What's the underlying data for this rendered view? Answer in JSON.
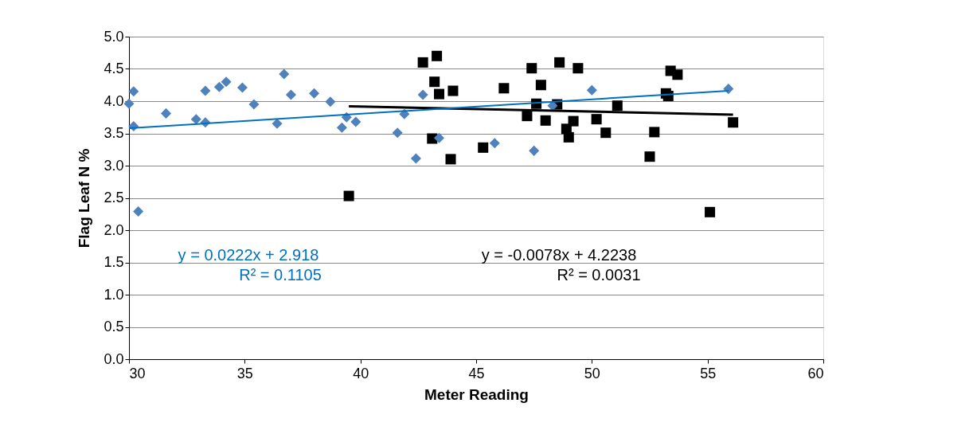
{
  "chart_data": {
    "type": "scatter",
    "xlabel": "Meter Reading",
    "ylabel": "Flag Leaf N %",
    "xlim": [
      30,
      60
    ],
    "xticks": [
      30,
      35,
      40,
      45,
      50,
      55,
      60
    ],
    "ylim": [
      0,
      5
    ],
    "yticks": [
      {
        "value": 0,
        "label": "0.0"
      },
      {
        "value": 0.5,
        "label": "0.5"
      },
      {
        "value": 1,
        "label": "1.0"
      },
      {
        "value": 1.5,
        "label": "1.5"
      },
      {
        "value": 2,
        "label": "2.0"
      },
      {
        "value": 2.5,
        "label": "2.5"
      },
      {
        "value": 3,
        "label": "3.0"
      },
      {
        "value": 3.5,
        "label": "3.5"
      },
      {
        "value": 4,
        "label": "4.0"
      },
      {
        "value": 4.5,
        "label": "4.5"
      },
      {
        "value": 5,
        "label": "5.0"
      }
    ],
    "grid": "y",
    "series": [
      {
        "marker": "square",
        "color": "#000000",
        "x": [
          39.5,
          42.7,
          43.3,
          43.2,
          43.4,
          43.1,
          44.0,
          43.9,
          45.3,
          46.2,
          47.4,
          47.2,
          47.6,
          47.8,
          48.0,
          48.5,
          48.6,
          48.9,
          49.0,
          49.2,
          49.4,
          50.2,
          50.6,
          51.1,
          52.5,
          52.7,
          53.3,
          53.2,
          53.4,
          53.7,
          55.1,
          56.1
        ],
        "values": [
          2.53,
          4.6,
          4.7,
          4.3,
          4.11,
          3.42,
          4.16,
          3.1,
          3.28,
          4.2,
          4.51,
          3.77,
          3.96,
          4.25,
          3.7,
          3.95,
          4.6,
          3.57,
          3.44,
          3.69,
          4.51,
          3.72,
          3.51,
          3.93,
          3.14,
          3.52,
          4.08,
          4.12,
          4.47,
          4.41,
          2.28,
          3.67
        ]
      },
      {
        "marker": "diamond",
        "color": "#4f81bd",
        "x": [
          30.0,
          30.2,
          30.2,
          30.4,
          31.6,
          32.9,
          33.3,
          33.3,
          33.9,
          34.2,
          34.9,
          35.4,
          36.4,
          36.7,
          37.0,
          38.0,
          38.7,
          39.2,
          39.4,
          39.8,
          41.6,
          41.9,
          42.4,
          42.7,
          43.4,
          45.8,
          47.5,
          48.3,
          50.0,
          55.9
        ],
        "values": [
          3.96,
          4.15,
          3.61,
          2.29,
          3.81,
          3.72,
          3.67,
          4.16,
          4.22,
          4.3,
          4.21,
          3.95,
          3.65,
          4.42,
          4.1,
          4.12,
          3.99,
          3.59,
          3.75,
          3.68,
          3.51,
          3.8,
          3.11,
          4.1,
          3.43,
          3.35,
          3.23,
          3.93,
          4.17,
          4.19
        ]
      },
      {
        "type": "line",
        "marker": "none",
        "line_style": "solid",
        "color": "#000000",
        "x": [
          39.5,
          56.1
        ],
        "values": [
          3.92,
          3.79
        ]
      },
      {
        "type": "line",
        "marker": "none",
        "line_style": "solid",
        "color": "#0070c0",
        "x": [
          30.0,
          55.9
        ],
        "values": [
          3.58,
          4.16
        ]
      }
    ],
    "annotations": [
      "y = 0.0222x + 2.918",
      "R² = 0.1105",
      "y = -0.0078x + 4.2238",
      "R² = 0.0031"
    ]
  }
}
